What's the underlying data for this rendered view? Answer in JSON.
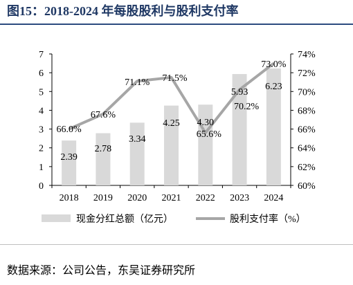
{
  "figure": {
    "title": "图15：2018-2024 年每股股利与股利支付率",
    "source": "数据来源：公司公告，东吴证券研究所"
  },
  "chart_data": {
    "type": "bar+line",
    "categories": [
      "2018",
      "2019",
      "2020",
      "2021",
      "2022",
      "2023",
      "2024"
    ],
    "series": [
      {
        "name": "现金分红总额（亿元）",
        "type": "bar",
        "axis": "left",
        "values": [
          2.39,
          2.78,
          3.34,
          4.25,
          4.3,
          5.93,
          6.23
        ],
        "labels": [
          "2.39",
          "2.78",
          "3.34",
          "4.25",
          "4.30",
          "5.93",
          "6.23"
        ],
        "color": "#d9d9d9"
      },
      {
        "name": "股利支付率（%）",
        "type": "line",
        "axis": "right",
        "values": [
          66.0,
          67.6,
          71.1,
          71.5,
          65.6,
          70.2,
          73.0
        ],
        "labels": [
          "66.0%",
          "67.6%",
          "71.1%",
          "71.5%",
          "65.6%",
          "70.2%",
          "73.0%"
        ],
        "color": "#a6a6a6"
      }
    ],
    "y_left": {
      "min": 0,
      "max": 7,
      "ticks": [
        "0",
        "1",
        "2",
        "3",
        "4",
        "5",
        "6",
        "7"
      ]
    },
    "y_right": {
      "min": 60,
      "max": 74,
      "ticks": [
        "60%",
        "62%",
        "64%",
        "66%",
        "68%",
        "70%",
        "72%",
        "74%"
      ]
    },
    "grid": false,
    "legend": "bottom"
  }
}
